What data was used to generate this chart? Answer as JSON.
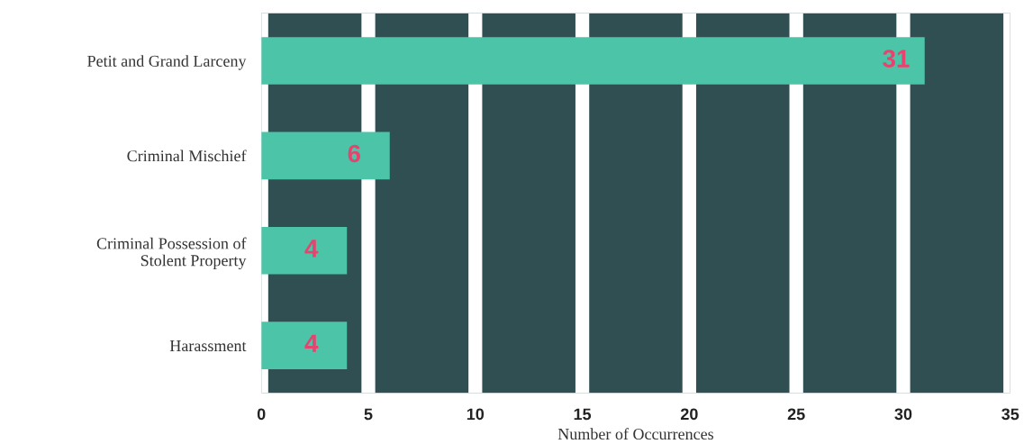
{
  "chart_data": {
    "type": "bar",
    "orientation": "horizontal",
    "xlabel": "Number of Occurrences",
    "categories": [
      "Petit and Grand Larceny",
      "Criminal Mischief",
      "Criminal Possession of Stolent Property",
      "Harassment"
    ],
    "values": [
      31,
      6,
      4,
      4
    ],
    "color": "#4cc4a8",
    "data_labels": true,
    "xlim": [
      0,
      35
    ],
    "xticks": [
      0,
      5,
      10,
      15,
      20,
      25,
      30,
      35
    ],
    "grid": "x"
  }
}
